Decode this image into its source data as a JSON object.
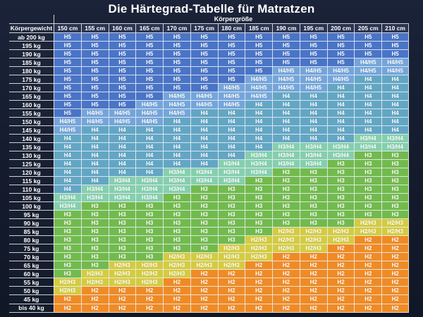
{
  "title": "Die Härtegrad-Tabelle für Matratzen",
  "axis_labels": {
    "columns_axis": "Körpergröße",
    "rows_axis": "Körpergewicht"
  },
  "grade_colors": {
    "H5": "#4a74c6",
    "H4/H5": "#74a5da",
    "H4": "#63a6c4",
    "H3/H4": "#85cfae",
    "H3": "#72ba4e",
    "H2/H3": "#d4cb40",
    "H2": "#ef8b26"
  },
  "chart_data": {
    "type": "heatmap",
    "title": "Die Härtegrad-Tabelle für Matratzen",
    "xlabel": "Körpergröße",
    "ylabel": "Körpergewicht",
    "columns": [
      "150 cm",
      "155 cm",
      "160 cm",
      "165 cm",
      "170 cm",
      "175 cm",
      "180 cm",
      "185 cm",
      "190 cm",
      "195 cm",
      "200 cm",
      "205 cm",
      "210 cm"
    ],
    "rows": [
      "ab 200 kg",
      "195 kg",
      "190 kg",
      "185 kg",
      "180 kg",
      "175 kg",
      "170 kg",
      "165 kg",
      "160 kg",
      "155 kg",
      "150 kg",
      "145 kg",
      "140 kg",
      "135 kg",
      "130 kg",
      "125 kg",
      "120 kg",
      "115 kg",
      "110 kg",
      "105 kg",
      "100 kg",
      "95 kg",
      "90 kg",
      "85 kg",
      "80 kg",
      "75 kg",
      "70 kg",
      "65 kg",
      "60 kg",
      "55 kg",
      "50 kg",
      "45 kg",
      "bis 40 kg"
    ],
    "values": [
      [
        "H5",
        "H5",
        "H5",
        "H5",
        "H5",
        "H5",
        "H5",
        "H5",
        "H5",
        "H5",
        "H5",
        "H5",
        "H5"
      ],
      [
        "H5",
        "H5",
        "H5",
        "H5",
        "H5",
        "H5",
        "H5",
        "H5",
        "H5",
        "H5",
        "H5",
        "H5",
        "H5"
      ],
      [
        "H5",
        "H5",
        "H5",
        "H5",
        "H5",
        "H5",
        "H5",
        "H5",
        "H5",
        "H5",
        "H5",
        "H5",
        "H5"
      ],
      [
        "H5",
        "H5",
        "H5",
        "H5",
        "H5",
        "H5",
        "H5",
        "H5",
        "H5",
        "H5",
        "H5",
        "H4/H5",
        "H4/H5"
      ],
      [
        "H5",
        "H5",
        "H5",
        "H5",
        "H5",
        "H5",
        "H5",
        "H5",
        "H4/H5",
        "H4/H5",
        "H4/H5",
        "H4/H5",
        "H4/H5"
      ],
      [
        "H5",
        "H5",
        "H5",
        "H5",
        "H5",
        "H5",
        "H5",
        "H4/H5",
        "H4/H5",
        "H4/H5",
        "H4/H5",
        "H4",
        "H4"
      ],
      [
        "H5",
        "H5",
        "H5",
        "H5",
        "H5",
        "H5",
        "H4/H5",
        "H4/H5",
        "H4/H5",
        "H4/H5",
        "H4",
        "H4",
        "H4"
      ],
      [
        "H5",
        "H5",
        "H5",
        "H5",
        "H4/H5",
        "H4/H5",
        "H4/H5",
        "H4/H5",
        "H4",
        "H4",
        "H4",
        "H4",
        "H4"
      ],
      [
        "H5",
        "H5",
        "H5",
        "H4/H5",
        "H4/H5",
        "H4/H5",
        "H4/H5",
        "H4",
        "H4",
        "H4",
        "H4",
        "H4",
        "H4"
      ],
      [
        "H5",
        "H4/H5",
        "H4/H5",
        "H4/H5",
        "H4/H5",
        "H4",
        "H4",
        "H4",
        "H4",
        "H4",
        "H4",
        "H4",
        "H4"
      ],
      [
        "H4/H5",
        "H4/H5",
        "H4/H5",
        "H4/H5",
        "H4",
        "H4",
        "H4",
        "H4",
        "H4",
        "H4",
        "H4",
        "H4",
        "H4"
      ],
      [
        "H4/H5",
        "H4",
        "H4",
        "H4",
        "H4",
        "H4",
        "H4",
        "H4",
        "H4",
        "H4",
        "H4",
        "H4",
        "H4"
      ],
      [
        "H4",
        "H4",
        "H4",
        "H4",
        "H4",
        "H4",
        "H4",
        "H4",
        "H4",
        "H4",
        "H4",
        "H3/H4",
        "H3/H4"
      ],
      [
        "H4",
        "H4",
        "H4",
        "H4",
        "H4",
        "H4",
        "H4",
        "H4",
        "H3/H4",
        "H3/H4",
        "H3/H4",
        "H3/H4",
        "H3/H4"
      ],
      [
        "H4",
        "H4",
        "H4",
        "H4",
        "H4",
        "H4",
        "H4",
        "H3/H4",
        "H3/H4",
        "H3/H4",
        "H3/H4",
        "H3",
        "H3"
      ],
      [
        "H4",
        "H4",
        "H4",
        "H4",
        "H4",
        "H4",
        "H3/H4",
        "H3/H4",
        "H3/H4",
        "H3/H4",
        "H3",
        "H3",
        "H3"
      ],
      [
        "H4",
        "H4",
        "H4",
        "H4",
        "H3/H4",
        "H3/H4",
        "H3/H4",
        "H3/H4",
        "H3",
        "H3",
        "H3",
        "H3",
        "H3"
      ],
      [
        "H4",
        "H4",
        "H3/H4",
        "H3/H4",
        "H3/H4",
        "H3/H4",
        "H3/H4",
        "H3",
        "H3",
        "H3",
        "H3",
        "H3",
        "H3"
      ],
      [
        "H4",
        "H3/H4",
        "H3/H4",
        "H3/H4",
        "H3/H4",
        "H3",
        "H3",
        "H3",
        "H3",
        "H3",
        "H3",
        "H3",
        "H3"
      ],
      [
        "H3/H4",
        "H3/H4",
        "H3/H4",
        "H3/H4",
        "H3",
        "H3",
        "H3",
        "H3",
        "H3",
        "H3",
        "H3",
        "H3",
        "H3"
      ],
      [
        "H3/H4",
        "H3",
        "H3",
        "H3",
        "H3",
        "H3",
        "H3",
        "H3",
        "H3",
        "H3",
        "H3",
        "H3",
        "H3"
      ],
      [
        "H3",
        "H3",
        "H3",
        "H3",
        "H3",
        "H3",
        "H3",
        "H3",
        "H3",
        "H3",
        "H3",
        "H3",
        "H3"
      ],
      [
        "H3",
        "H3",
        "H3",
        "H3",
        "H3",
        "H3",
        "H3",
        "H3",
        "H3",
        "H3",
        "H3",
        "H2/H3",
        "H2/H3"
      ],
      [
        "H3",
        "H3",
        "H3",
        "H3",
        "H3",
        "H3",
        "H3",
        "H3",
        "H2/H3",
        "H2/H3",
        "H2/H3",
        "H2/H3",
        "H2/H3"
      ],
      [
        "H3",
        "H3",
        "H3",
        "H3",
        "H3",
        "H3",
        "H3",
        "H2/H3",
        "H2/H3",
        "H2/H3",
        "H2/H3",
        "H2",
        "H2"
      ],
      [
        "H3",
        "H3",
        "H3",
        "H3",
        "H3",
        "H3",
        "H2/H3",
        "H2/H3",
        "H2/H3",
        "H2/H3",
        "H2",
        "H2",
        "H2"
      ],
      [
        "H3",
        "H3",
        "H3",
        "H3",
        "H2/H3",
        "H2/H3",
        "H2/H3",
        "H2/H3",
        "H2",
        "H2",
        "H2",
        "H2",
        "H2"
      ],
      [
        "H3",
        "H3",
        "H2/H3",
        "H2/H3",
        "H2/H3",
        "H2/H3",
        "H2/H3",
        "H2",
        "H2",
        "H2",
        "H2",
        "H2",
        "H2"
      ],
      [
        "H3",
        "H2/H3",
        "H2/H3",
        "H2/H3",
        "H2/H3",
        "H2",
        "H2",
        "H2",
        "H2",
        "H2",
        "H2",
        "H2",
        "H2"
      ],
      [
        "H2/H3",
        "H2/H3",
        "H2/H3",
        "H2/H3",
        "H2",
        "H2",
        "H2",
        "H2",
        "H2",
        "H2",
        "H2",
        "H2",
        "H2"
      ],
      [
        "H2/H3",
        "H2",
        "H2",
        "H2",
        "H2",
        "H2",
        "H2",
        "H2",
        "H2",
        "H2",
        "H2",
        "H2",
        "H2"
      ],
      [
        "H2",
        "H2",
        "H2",
        "H2",
        "H2",
        "H2",
        "H2",
        "H2",
        "H2",
        "H2",
        "H2",
        "H2",
        "H2"
      ],
      [
        "H2",
        "H2",
        "H2",
        "H2",
        "H2",
        "H2",
        "H2",
        "H2",
        "H2",
        "H2",
        "H2",
        "H2",
        "H2"
      ]
    ]
  }
}
